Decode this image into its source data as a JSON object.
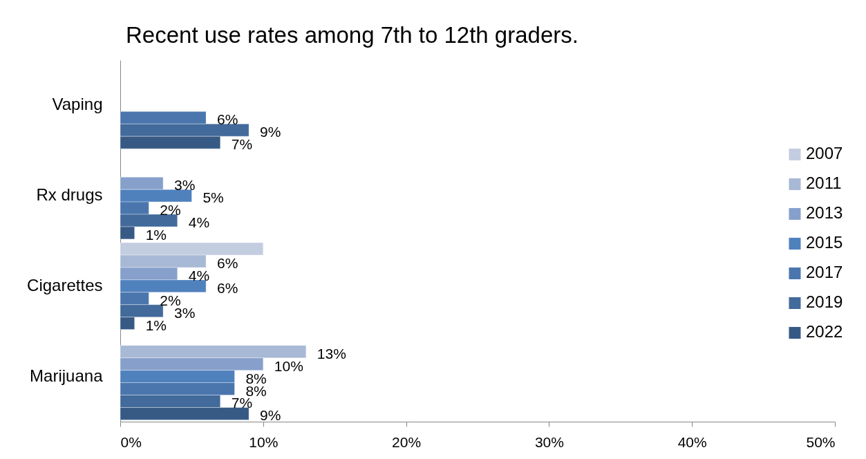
{
  "chart_data": {
    "type": "bar",
    "orientation": "horizontal",
    "title": "Recent use rates among 7th to 12th graders.",
    "categories": [
      "Vaping",
      "Rx drugs",
      "Cigarettes",
      "Marijuana"
    ],
    "series": [
      {
        "name": "2007",
        "color": "#c3cde0",
        "values": [
          null,
          null,
          10,
          null
        ]
      },
      {
        "name": "2011",
        "color": "#a8b9d6",
        "values": [
          null,
          null,
          6,
          13
        ],
        "value_labels": [
          null,
          null,
          "6%",
          "13%"
        ]
      },
      {
        "name": "2013",
        "color": "#86a0cb",
        "values": [
          null,
          3,
          4,
          10
        ],
        "value_labels": [
          null,
          "3%",
          "4%",
          "10%"
        ]
      },
      {
        "name": "2015",
        "color": "#4f81bd",
        "values": [
          null,
          5,
          6,
          8
        ],
        "value_labels": [
          null,
          "5%",
          "6%",
          "8%"
        ]
      },
      {
        "name": "2017",
        "color": "#4a76ad",
        "values": [
          6,
          2,
          2,
          8
        ],
        "value_labels": [
          "6%",
          "2%",
          "2%",
          "8%"
        ]
      },
      {
        "name": "2019",
        "color": "#426a9b",
        "values": [
          9,
          4,
          3,
          7
        ],
        "value_labels": [
          "9%",
          "4%",
          "3%",
          "7%"
        ]
      },
      {
        "name": "2022",
        "color": "#375a85",
        "values": [
          7,
          1,
          1,
          9
        ],
        "value_labels": [
          "7%",
          "1%",
          "1%",
          "9%"
        ]
      }
    ],
    "xlim": [
      0,
      50
    ],
    "xticks": [
      {
        "value": 0,
        "label": "0%"
      },
      {
        "value": 10,
        "label": "10%"
      },
      {
        "value": 20,
        "label": "20%"
      },
      {
        "value": 30,
        "label": "30%"
      },
      {
        "value": 40,
        "label": "40%"
      },
      {
        "value": 50,
        "label": "50%"
      }
    ],
    "legend": "right",
    "grid": false
  }
}
